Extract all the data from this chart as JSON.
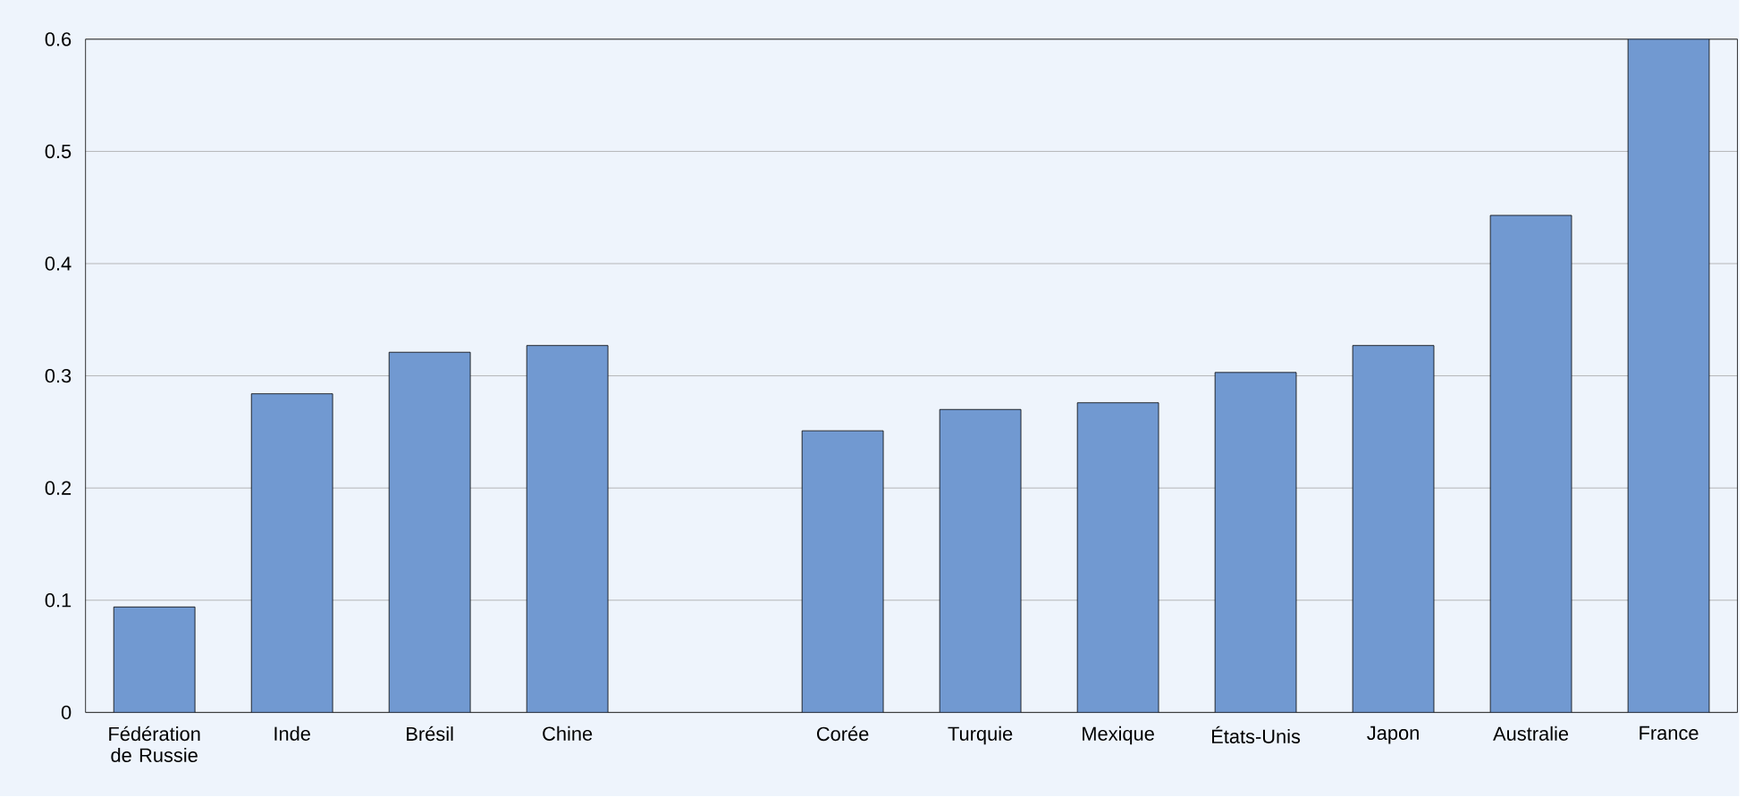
{
  "chart_data": {
    "type": "bar",
    "categories": [
      "Fédération de Russie",
      "Inde",
      "Brésil",
      "Chine",
      null,
      "Corée",
      "Turquie",
      "Mexique",
      "États-Unis",
      "Japon",
      "Australie",
      "France"
    ],
    "values": [
      0.094,
      0.284,
      0.321,
      0.327,
      null,
      0.251,
      0.27,
      0.276,
      0.303,
      0.327,
      0.443,
      0.6
    ],
    "color": "#7199d1",
    "ylim": [
      0,
      0.6
    ],
    "yticks": [
      0,
      0.1,
      0.2,
      0.3,
      0.4,
      0.5,
      0.6
    ],
    "grid": "y"
  }
}
